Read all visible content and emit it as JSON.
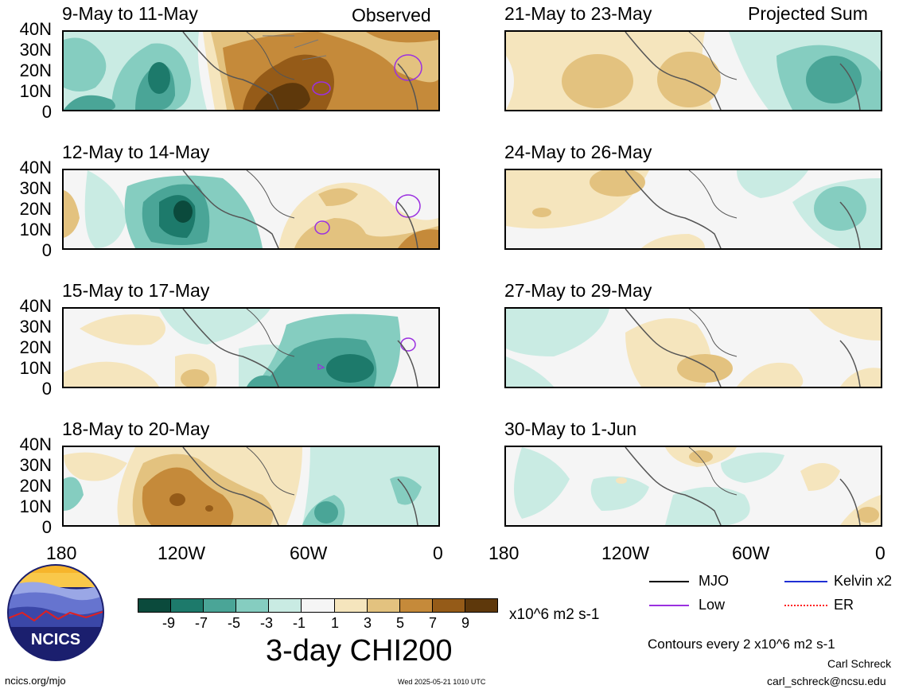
{
  "panels": [
    {
      "title": "9-May to 11-May",
      "corner": "Observed"
    },
    {
      "title": "21-May to 23-May",
      "corner": "Projected Sum"
    },
    {
      "title": "12-May to 14-May",
      "corner": ""
    },
    {
      "title": "24-May to 26-May",
      "corner": ""
    },
    {
      "title": "15-May to 17-May",
      "corner": ""
    },
    {
      "title": "27-May to 29-May",
      "corner": ""
    },
    {
      "title": "18-May to 20-May",
      "corner": ""
    },
    {
      "title": "30-May to 1-Jun",
      "corner": ""
    }
  ],
  "lat_ticks": [
    "40N",
    "30N",
    "20N",
    "10N",
    "0"
  ],
  "lon_ticks": [
    "180",
    "120W",
    "60W",
    "0"
  ],
  "colorbar": {
    "colors": [
      "#0b4a3c",
      "#1d7a6b",
      "#4aa597",
      "#85cdc0",
      "#c9ebe3",
      "#f5f5f5",
      "#f5e5bd",
      "#e3c27f",
      "#c58a3a",
      "#955b18",
      "#5e380b"
    ],
    "labels": [
      "-9",
      "-7",
      "-5",
      "-3",
      "-1",
      "1",
      "3",
      "5",
      "7",
      "9"
    ],
    "units": "x10^6 m2 s-1"
  },
  "main_title": "3-day CHI200",
  "legend": [
    {
      "label": "MJO",
      "color": "#000000"
    },
    {
      "label": "Kelvin x2",
      "color": "#1f2fd4"
    },
    {
      "label": "Low",
      "color": "#9b30e0"
    },
    {
      "label": "ER",
      "color": "#ff2020"
    }
  ],
  "contour_note": "Contours every 2 x10^6 m2 s-1",
  "author": "Carl Schreck",
  "email": "carl_schreck@ncsu.edu",
  "website": "ncics.org/mjo",
  "timestamp": "Wed 2025-05-21 1010 UTC",
  "logo_text": "NCICS"
}
